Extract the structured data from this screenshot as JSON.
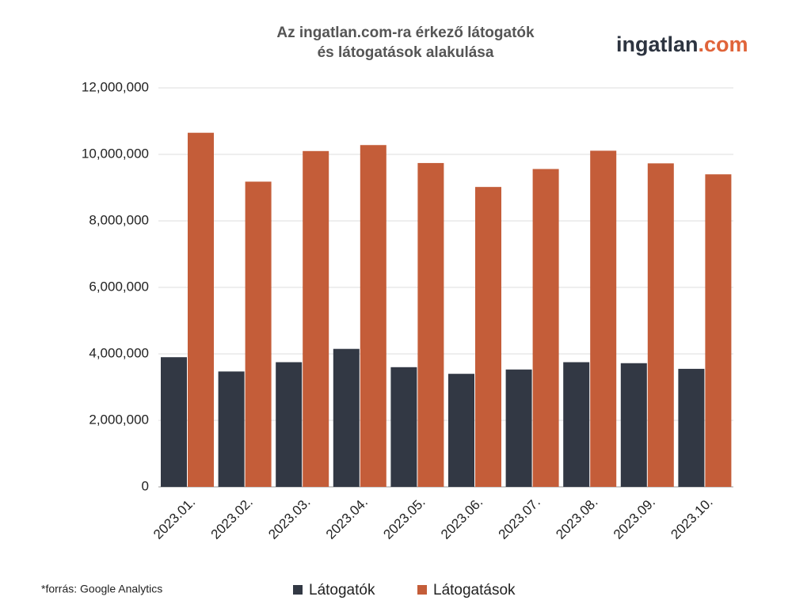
{
  "chart_data": {
    "type": "bar",
    "title": [
      "Az ingatlan.com-ra érkező látogatók",
      "és látogatások alakulása"
    ],
    "logo": {
      "main": "ingatlan",
      "suffix": ".com"
    },
    "note": "*forrás: Google Analytics",
    "categories": [
      "2023.01.",
      "2023.02.",
      "2023.03.",
      "2023.04.",
      "2023.05.",
      "2023.06.",
      "2023.07.",
      "2023.08.",
      "2023.09.",
      "2023.10."
    ],
    "series": [
      {
        "name": "Látogatók",
        "color": "#323844",
        "values": [
          3900000,
          3470000,
          3750000,
          4150000,
          3600000,
          3400000,
          3530000,
          3750000,
          3720000,
          3550000
        ]
      },
      {
        "name": "Látogatások",
        "color": "#c45d39",
        "values": [
          10650000,
          9180000,
          10100000,
          10280000,
          9740000,
          9020000,
          9560000,
          10110000,
          9730000,
          9400000
        ]
      }
    ],
    "ylim": [
      0,
      12000000
    ],
    "yticks": [
      0,
      {
        "value": 2000000,
        "label": "2,000,000"
      },
      {
        "value": 4000000,
        "label": "4,000,000"
      },
      {
        "value": 6000000,
        "label": "6,000,000"
      },
      {
        "value": 8000000,
        "label": "8,000,000"
      },
      {
        "value": 10000000,
        "label": "10,000,000"
      },
      {
        "value": 12000000,
        "label": "12,000,000"
      }
    ],
    "grid": true
  }
}
